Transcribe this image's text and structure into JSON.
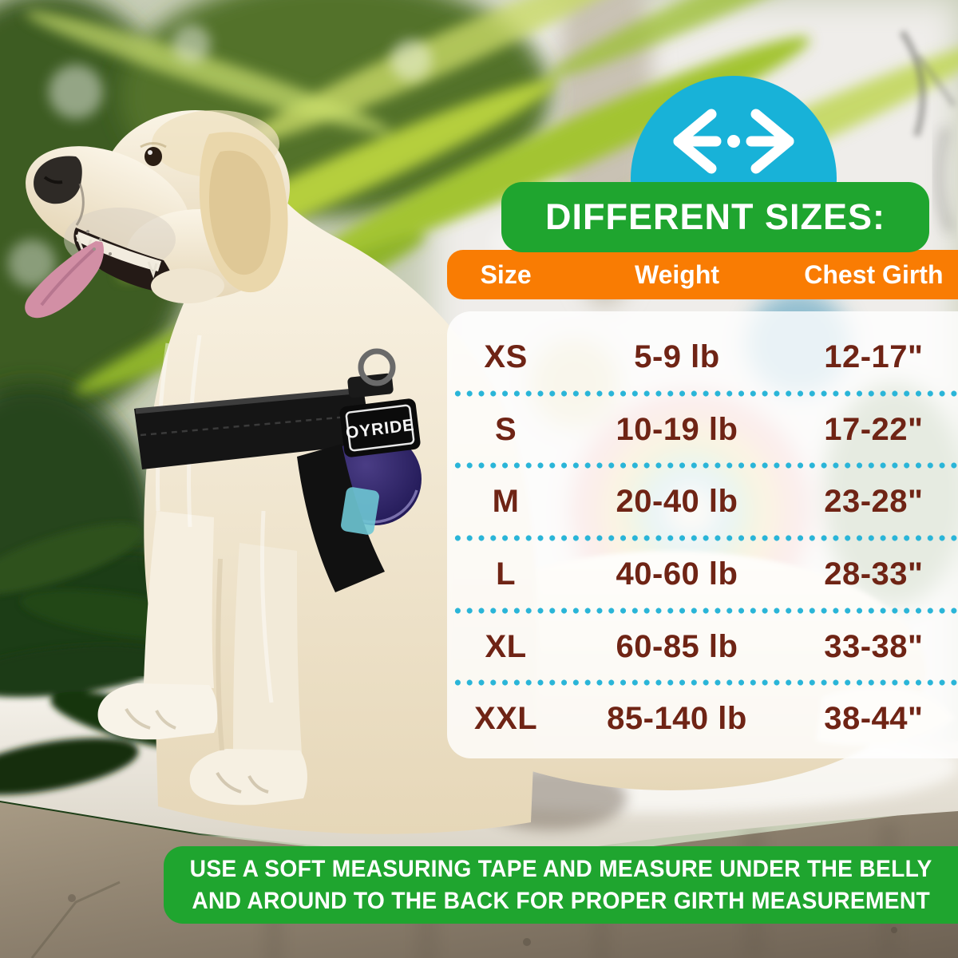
{
  "colors": {
    "green": "#1fa52f",
    "orange": "#f97c03",
    "teal": "#18b2d8",
    "table_text": "#6f2415",
    "dot_teal": "#2ab5d8"
  },
  "measure_badge": {
    "icon": "horizontal-measure-arrows-icon"
  },
  "title_banner": {
    "label": "DIFFERENT SIZES:"
  },
  "footer_note": {
    "line1": "USE A SOFT MEASURING TAPE AND MEASURE UNDER THE BELLY",
    "line2": "AND AROUND TO THE BACK FOR PROPER GIRTH MEASUREMENT"
  },
  "photo": {
    "harness_patch_label": "OYRIDE"
  },
  "chart_data": {
    "type": "table",
    "title": "DIFFERENT SIZES:",
    "columns": [
      "Size",
      "Weight",
      "Chest Girth"
    ],
    "rows": [
      [
        "XS",
        "5-9 lb",
        "12-17\""
      ],
      [
        "S",
        "10-19 lb",
        "17-22\""
      ],
      [
        "M",
        "20-40 lb",
        "23-28\""
      ],
      [
        "L",
        "40-60 lb",
        "28-33\""
      ],
      [
        "XL",
        "60-85 lb",
        "33-38\""
      ],
      [
        "XXL",
        "85-140 lb",
        "38-44\""
      ]
    ],
    "note": "USE A SOFT MEASURING TAPE AND MEASURE UNDER THE BELLY AND AROUND TO THE BACK FOR PROPER GIRTH MEASUREMENT"
  }
}
